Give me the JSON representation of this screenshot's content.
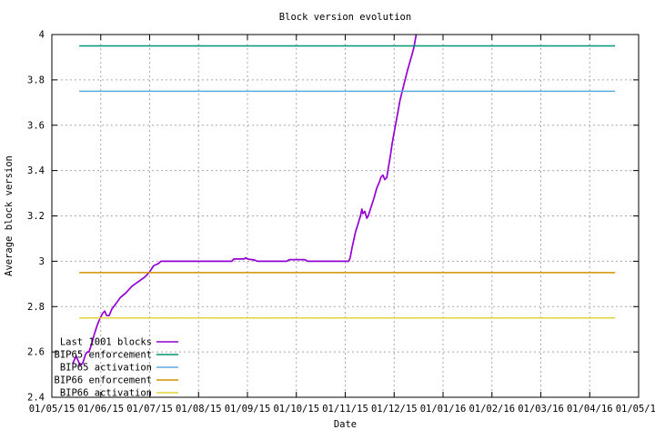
{
  "chart_data": {
    "type": "line",
    "title": "Block version evolution",
    "xlabel": "Date",
    "ylabel": "Average block version",
    "grid": true,
    "legend_position": "bottom-left-inside",
    "x_axis": {
      "unit": "months since 2015-05-01",
      "range": [
        0,
        12
      ],
      "tick_labels": [
        "01/05/15",
        "01/06/15",
        "01/07/15",
        "01/08/15",
        "01/09/15",
        "01/10/15",
        "01/11/15",
        "01/12/15",
        "01/01/16",
        "01/02/16",
        "01/03/16",
        "01/04/16",
        "01/05/16"
      ],
      "minor_tick_interval_days": 7
    },
    "y_axis": {
      "min": 2.4,
      "max": 4.0,
      "tick_step": 0.2,
      "tick_values": [
        2.4,
        2.6,
        2.8,
        3.0,
        3.2,
        3.4,
        3.6,
        3.8,
        4.0
      ],
      "tick_labels": [
        "2.4",
        "2.6",
        "2.8",
        "3",
        "3.2",
        "3.4",
        "3.6",
        "3.8",
        "4"
      ]
    },
    "colors": {
      "grid": "#a8a8a8",
      "axis": "#000000",
      "background": "#ffffff"
    },
    "series": [
      {
        "name": "Last 1001 blocks",
        "type": "curve",
        "color": "#9400d3",
        "points": [
          [
            0.43,
            2.55
          ],
          [
            0.47,
            2.57
          ],
          [
            0.5,
            2.58
          ],
          [
            0.54,
            2.56
          ],
          [
            0.58,
            2.54
          ],
          [
            0.63,
            2.55
          ],
          [
            0.69,
            2.59
          ],
          [
            0.73,
            2.6
          ],
          [
            0.76,
            2.6
          ],
          [
            0.82,
            2.64
          ],
          [
            0.87,
            2.68
          ],
          [
            0.93,
            2.72
          ],
          [
            0.99,
            2.75
          ],
          [
            1.04,
            2.77
          ],
          [
            1.08,
            2.78
          ],
          [
            1.12,
            2.76
          ],
          [
            1.17,
            2.76
          ],
          [
            1.23,
            2.79
          ],
          [
            1.3,
            2.81
          ],
          [
            1.4,
            2.84
          ],
          [
            1.51,
            2.86
          ],
          [
            1.64,
            2.89
          ],
          [
            1.77,
            2.91
          ],
          [
            1.9,
            2.93
          ],
          [
            1.99,
            2.95
          ],
          [
            2.08,
            2.98
          ],
          [
            2.18,
            2.99
          ],
          [
            2.23,
            3.0
          ],
          [
            3.68,
            3.0
          ],
          [
            3.72,
            3.01
          ],
          [
            3.93,
            3.01
          ],
          [
            3.96,
            3.015
          ],
          [
            4.0,
            3.01
          ],
          [
            4.15,
            3.005
          ],
          [
            4.2,
            3.0
          ],
          [
            4.8,
            3.0
          ],
          [
            4.86,
            3.007
          ],
          [
            5.17,
            3.007
          ],
          [
            5.23,
            3.0
          ],
          [
            6.07,
            3.0
          ],
          [
            6.1,
            3.015
          ],
          [
            6.14,
            3.06
          ],
          [
            6.18,
            3.1
          ],
          [
            6.21,
            3.13
          ],
          [
            6.27,
            3.17
          ],
          [
            6.31,
            3.2
          ],
          [
            6.34,
            3.23
          ],
          [
            6.36,
            3.21
          ],
          [
            6.4,
            3.22
          ],
          [
            6.44,
            3.19
          ],
          [
            6.47,
            3.2
          ],
          [
            6.53,
            3.24
          ],
          [
            6.59,
            3.28
          ],
          [
            6.64,
            3.32
          ],
          [
            6.7,
            3.35
          ],
          [
            6.73,
            3.37
          ],
          [
            6.77,
            3.38
          ],
          [
            6.81,
            3.36
          ],
          [
            6.85,
            3.37
          ],
          [
            6.88,
            3.41
          ],
          [
            6.92,
            3.46
          ],
          [
            6.96,
            3.52
          ],
          [
            7.01,
            3.58
          ],
          [
            7.07,
            3.65
          ],
          [
            7.12,
            3.71
          ],
          [
            7.2,
            3.78
          ],
          [
            7.27,
            3.84
          ],
          [
            7.35,
            3.9
          ],
          [
            7.4,
            3.94
          ],
          [
            7.46,
            4.01
          ]
        ]
      },
      {
        "name": "BIP65 enforcement",
        "type": "hline",
        "color": "#009473",
        "y": 3.95,
        "x_range": [
          0.56,
          11.52
        ]
      },
      {
        "name": "BIP65 activation",
        "type": "hline",
        "color": "#58abdf",
        "y": 3.75,
        "x_range": [
          0.56,
          11.52
        ]
      },
      {
        "name": "BIP66 enforcement",
        "type": "hline",
        "color": "#d29000",
        "y": 2.95,
        "x_range": [
          0.56,
          11.52
        ]
      },
      {
        "name": "BIP66 activation",
        "type": "hline",
        "color": "#e4d23c",
        "y": 2.75,
        "x_range": [
          0.56,
          11.52
        ]
      }
    ]
  }
}
